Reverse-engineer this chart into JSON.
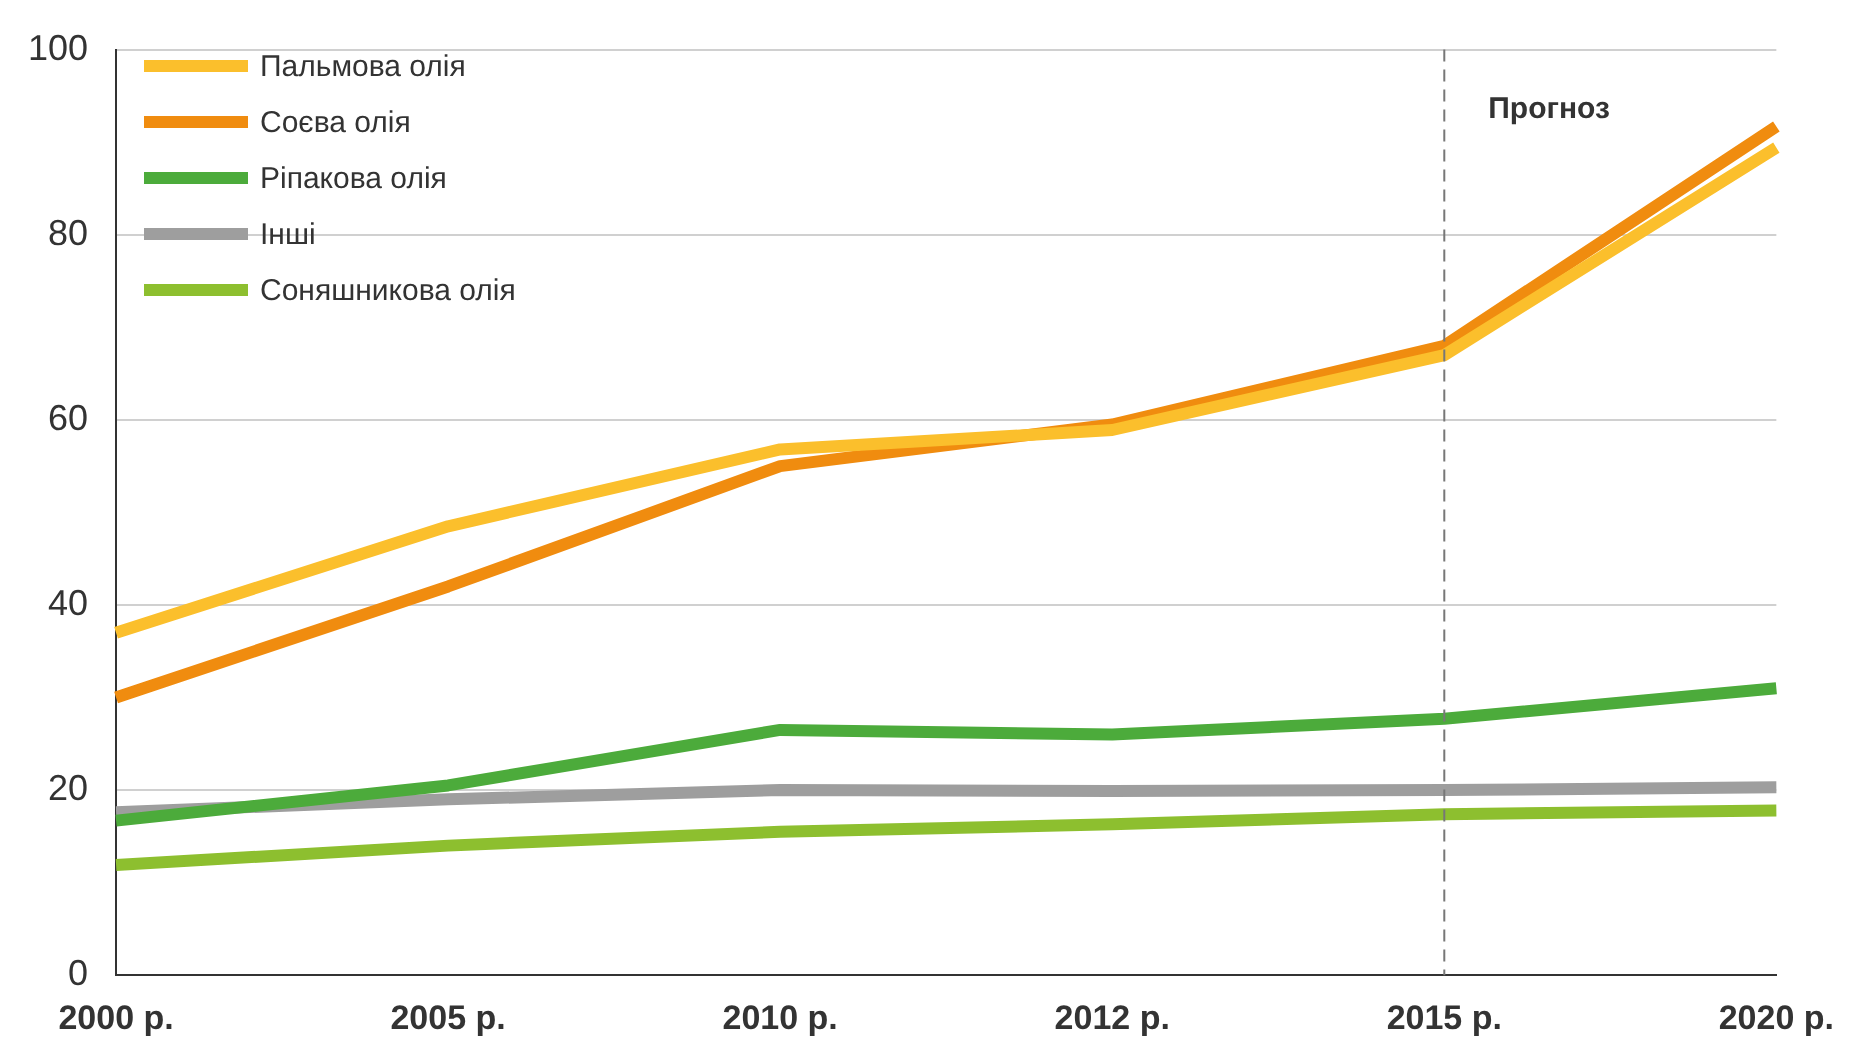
{
  "chart_data": {
    "type": "line",
    "categories": [
      "2000 р.",
      "2005 р.",
      "2010 р.",
      "2012 р.",
      "2015 р.",
      "2020 р."
    ],
    "series": [
      {
        "name": "Пальмова олія",
        "color": "#fbbf2c",
        "values": [
          37,
          48.5,
          56.8,
          58.9,
          67,
          89.4
        ]
      },
      {
        "name": "Соєва олія",
        "color": "#f08c0f",
        "values": [
          30,
          42,
          55,
          59.5,
          68,
          91.7
        ]
      },
      {
        "name": "Ріпакова олія",
        "color": "#4cab3b",
        "values": [
          16.7,
          20.5,
          26.5,
          26,
          27.7,
          31
        ]
      },
      {
        "name": "Інші",
        "color": "#9e9e9e",
        "values": [
          17.6,
          19,
          20,
          19.9,
          20,
          20.3
        ]
      },
      {
        "name": "Соняшникова олія",
        "color": "#8dbf2f",
        "values": [
          11.9,
          14,
          15.5,
          16.3,
          17.4,
          17.8
        ]
      }
    ],
    "ylim": [
      0,
      100
    ],
    "yticks": [
      0,
      20,
      40,
      60,
      80,
      100
    ],
    "grid": "y",
    "legend": "top left",
    "marker": "none",
    "line_style": "solid",
    "ref_lines": [
      {
        "axis": "x",
        "value": "2015 р.",
        "label": "Прогноз",
        "color": "#777777",
        "line_style": "dashed"
      }
    ]
  }
}
